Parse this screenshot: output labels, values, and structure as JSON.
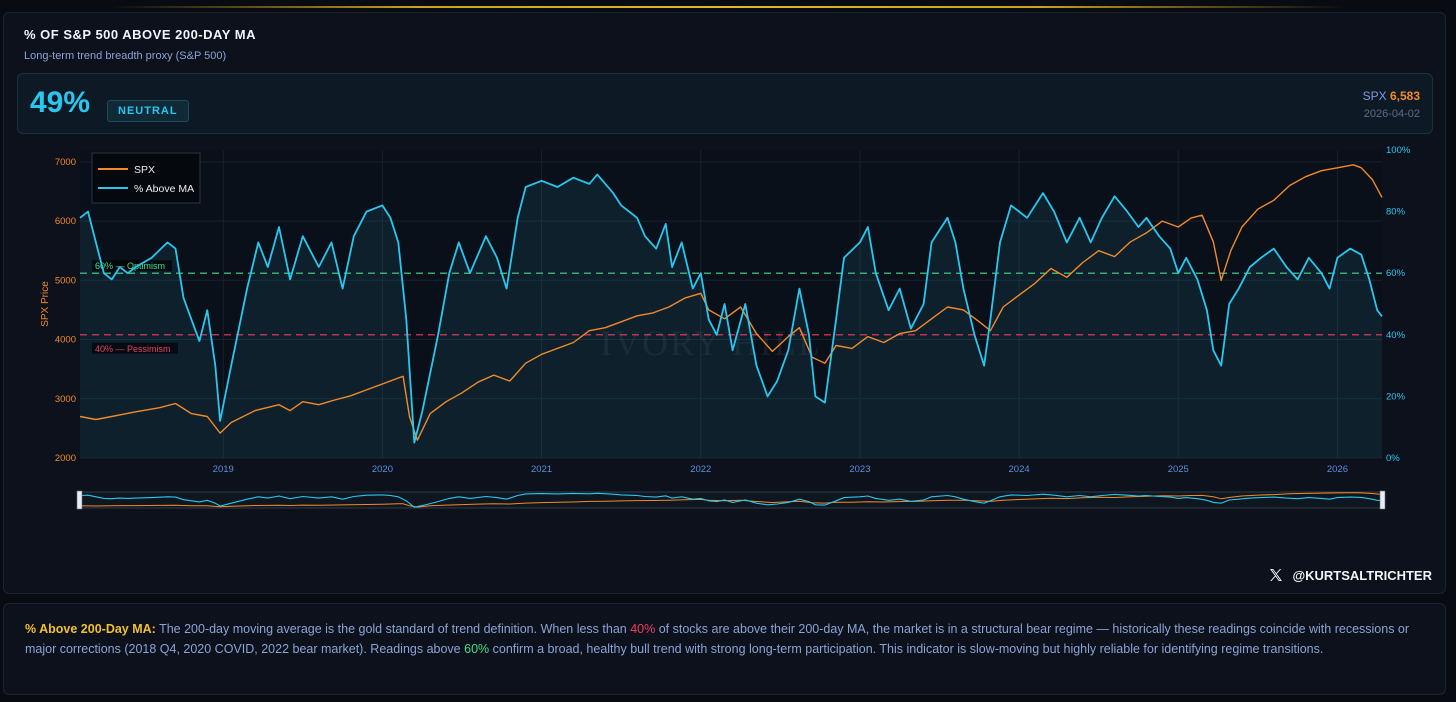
{
  "header": {
    "title": "% OF S&P 500 ABOVE 200-DAY MA",
    "subtitle": "Long-term trend breadth proxy (S&P 500)"
  },
  "kpi": {
    "value": "49%",
    "badge": "NEUTRAL",
    "spx_label": "SPX",
    "spx_value": "6,583",
    "date": "2026-04-02"
  },
  "colors": {
    "spx": "#f28a2a",
    "pct": "#28c7f0",
    "optimism": "#3ee08a",
    "pessimism": "#f03d63",
    "accent": "#28c7f0"
  },
  "chart_data": {
    "type": "line",
    "ylabel": "SPX Price",
    "y_left_range": [
      2000,
      7200
    ],
    "y_left_ticks": [
      2000,
      3000,
      4000,
      5000,
      6000,
      7000
    ],
    "y_right_range": [
      0,
      100
    ],
    "y_right_ticks": [
      "0%",
      "20%",
      "40%",
      "60%",
      "80%",
      "100%"
    ],
    "x_range": [
      2018.1,
      2026.28
    ],
    "x_ticks": [
      "2019",
      "2020",
      "2021",
      "2022",
      "2023",
      "2024",
      "2025",
      "2026"
    ],
    "legend": {
      "placement": "top-left",
      "entries": [
        "SPX",
        "% Above MA"
      ]
    },
    "watermark": "IVORY HILL",
    "thresholds": [
      {
        "label": "60% — Optimism",
        "value": 60
      },
      {
        "label": "40% — Pessimism",
        "value": 40
      }
    ],
    "series": [
      {
        "name": "SPX",
        "axis": "left",
        "points": [
          [
            2018.1,
            2700
          ],
          [
            2018.2,
            2650
          ],
          [
            2018.3,
            2700
          ],
          [
            2018.45,
            2780
          ],
          [
            2018.6,
            2850
          ],
          [
            2018.7,
            2920
          ],
          [
            2018.8,
            2750
          ],
          [
            2018.9,
            2700
          ],
          [
            2018.98,
            2420
          ],
          [
            2019.05,
            2600
          ],
          [
            2019.2,
            2800
          ],
          [
            2019.35,
            2900
          ],
          [
            2019.42,
            2800
          ],
          [
            2019.5,
            2950
          ],
          [
            2019.6,
            2900
          ],
          [
            2019.7,
            2980
          ],
          [
            2019.8,
            3050
          ],
          [
            2019.9,
            3150
          ],
          [
            2020.0,
            3250
          ],
          [
            2020.1,
            3350
          ],
          [
            2020.13,
            3380
          ],
          [
            2020.17,
            2700
          ],
          [
            2020.22,
            2300
          ],
          [
            2020.3,
            2750
          ],
          [
            2020.4,
            2950
          ],
          [
            2020.5,
            3100
          ],
          [
            2020.6,
            3280
          ],
          [
            2020.7,
            3400
          ],
          [
            2020.8,
            3300
          ],
          [
            2020.9,
            3600
          ],
          [
            2021.0,
            3750
          ],
          [
            2021.1,
            3850
          ],
          [
            2021.2,
            3950
          ],
          [
            2021.3,
            4150
          ],
          [
            2021.4,
            4200
          ],
          [
            2021.5,
            4300
          ],
          [
            2021.6,
            4400
          ],
          [
            2021.7,
            4450
          ],
          [
            2021.8,
            4550
          ],
          [
            2021.9,
            4700
          ],
          [
            2022.0,
            4780
          ],
          [
            2022.05,
            4500
          ],
          [
            2022.15,
            4350
          ],
          [
            2022.25,
            4550
          ],
          [
            2022.35,
            4100
          ],
          [
            2022.45,
            3800
          ],
          [
            2022.55,
            4050
          ],
          [
            2022.62,
            4200
          ],
          [
            2022.7,
            3700
          ],
          [
            2022.78,
            3600
          ],
          [
            2022.85,
            3900
          ],
          [
            2022.95,
            3850
          ],
          [
            2023.05,
            4050
          ],
          [
            2023.15,
            3950
          ],
          [
            2023.25,
            4100
          ],
          [
            2023.35,
            4150
          ],
          [
            2023.45,
            4350
          ],
          [
            2023.55,
            4550
          ],
          [
            2023.65,
            4500
          ],
          [
            2023.75,
            4300
          ],
          [
            2023.82,
            4150
          ],
          [
            2023.9,
            4550
          ],
          [
            2024.0,
            4750
          ],
          [
            2024.1,
            4950
          ],
          [
            2024.2,
            5200
          ],
          [
            2024.3,
            5050
          ],
          [
            2024.4,
            5300
          ],
          [
            2024.5,
            5500
          ],
          [
            2024.6,
            5400
          ],
          [
            2024.7,
            5650
          ],
          [
            2024.8,
            5800
          ],
          [
            2024.9,
            6000
          ],
          [
            2025.0,
            5900
          ],
          [
            2025.08,
            6050
          ],
          [
            2025.15,
            6100
          ],
          [
            2025.22,
            5650
          ],
          [
            2025.27,
            5000
          ],
          [
            2025.33,
            5500
          ],
          [
            2025.4,
            5900
          ],
          [
            2025.5,
            6200
          ],
          [
            2025.6,
            6350
          ],
          [
            2025.7,
            6600
          ],
          [
            2025.8,
            6750
          ],
          [
            2025.9,
            6850
          ],
          [
            2026.0,
            6900
          ],
          [
            2026.1,
            6950
          ],
          [
            2026.15,
            6900
          ],
          [
            2026.22,
            6700
          ],
          [
            2026.28,
            6400
          ]
        ]
      },
      {
        "name": "% Above MA",
        "axis": "right",
        "points": [
          [
            2018.1,
            78
          ],
          [
            2018.15,
            80
          ],
          [
            2018.2,
            70
          ],
          [
            2018.25,
            60
          ],
          [
            2018.3,
            58
          ],
          [
            2018.35,
            62
          ],
          [
            2018.4,
            60
          ],
          [
            2018.45,
            62
          ],
          [
            2018.55,
            65
          ],
          [
            2018.65,
            70
          ],
          [
            2018.7,
            68
          ],
          [
            2018.75,
            52
          ],
          [
            2018.8,
            45
          ],
          [
            2018.85,
            38
          ],
          [
            2018.9,
            48
          ],
          [
            2018.95,
            30
          ],
          [
            2018.98,
            12
          ],
          [
            2019.05,
            30
          ],
          [
            2019.15,
            55
          ],
          [
            2019.22,
            70
          ],
          [
            2019.28,
            62
          ],
          [
            2019.35,
            75
          ],
          [
            2019.42,
            58
          ],
          [
            2019.5,
            72
          ],
          [
            2019.6,
            62
          ],
          [
            2019.68,
            70
          ],
          [
            2019.75,
            55
          ],
          [
            2019.82,
            72
          ],
          [
            2019.9,
            80
          ],
          [
            2020.0,
            82
          ],
          [
            2020.05,
            78
          ],
          [
            2020.1,
            70
          ],
          [
            2020.15,
            45
          ],
          [
            2020.2,
            5
          ],
          [
            2020.25,
            15
          ],
          [
            2020.35,
            40
          ],
          [
            2020.42,
            60
          ],
          [
            2020.48,
            70
          ],
          [
            2020.55,
            60
          ],
          [
            2020.65,
            72
          ],
          [
            2020.72,
            65
          ],
          [
            2020.78,
            55
          ],
          [
            2020.85,
            78
          ],
          [
            2020.9,
            88
          ],
          [
            2021.0,
            90
          ],
          [
            2021.1,
            88
          ],
          [
            2021.2,
            91
          ],
          [
            2021.3,
            89
          ],
          [
            2021.35,
            92
          ],
          [
            2021.45,
            86
          ],
          [
            2021.5,
            82
          ],
          [
            2021.6,
            78
          ],
          [
            2021.65,
            72
          ],
          [
            2021.72,
            68
          ],
          [
            2021.78,
            76
          ],
          [
            2021.82,
            62
          ],
          [
            2021.88,
            70
          ],
          [
            2021.95,
            55
          ],
          [
            2022.0,
            60
          ],
          [
            2022.05,
            45
          ],
          [
            2022.1,
            40
          ],
          [
            2022.15,
            50
          ],
          [
            2022.2,
            35
          ],
          [
            2022.28,
            50
          ],
          [
            2022.35,
            30
          ],
          [
            2022.42,
            20
          ],
          [
            2022.48,
            25
          ],
          [
            2022.55,
            35
          ],
          [
            2022.62,
            55
          ],
          [
            2022.68,
            40
          ],
          [
            2022.72,
            20
          ],
          [
            2022.78,
            18
          ],
          [
            2022.85,
            45
          ],
          [
            2022.9,
            65
          ],
          [
            2023.0,
            70
          ],
          [
            2023.05,
            75
          ],
          [
            2023.1,
            60
          ],
          [
            2023.18,
            48
          ],
          [
            2023.25,
            55
          ],
          [
            2023.32,
            42
          ],
          [
            2023.4,
            50
          ],
          [
            2023.45,
            70
          ],
          [
            2023.55,
            78
          ],
          [
            2023.6,
            70
          ],
          [
            2023.65,
            55
          ],
          [
            2023.72,
            40
          ],
          [
            2023.78,
            30
          ],
          [
            2023.82,
            45
          ],
          [
            2023.88,
            70
          ],
          [
            2023.95,
            82
          ],
          [
            2024.05,
            78
          ],
          [
            2024.15,
            86
          ],
          [
            2024.22,
            80
          ],
          [
            2024.3,
            70
          ],
          [
            2024.38,
            78
          ],
          [
            2024.45,
            70
          ],
          [
            2024.52,
            78
          ],
          [
            2024.6,
            85
          ],
          [
            2024.68,
            80
          ],
          [
            2024.75,
            75
          ],
          [
            2024.8,
            78
          ],
          [
            2024.88,
            72
          ],
          [
            2024.95,
            68
          ],
          [
            2025.0,
            60
          ],
          [
            2025.05,
            65
          ],
          [
            2025.12,
            58
          ],
          [
            2025.18,
            48
          ],
          [
            2025.22,
            35
          ],
          [
            2025.27,
            30
          ],
          [
            2025.32,
            50
          ],
          [
            2025.38,
            55
          ],
          [
            2025.45,
            62
          ],
          [
            2025.52,
            65
          ],
          [
            2025.6,
            68
          ],
          [
            2025.68,
            62
          ],
          [
            2025.75,
            58
          ],
          [
            2025.82,
            65
          ],
          [
            2025.9,
            60
          ],
          [
            2025.95,
            55
          ],
          [
            2026.0,
            65
          ],
          [
            2026.08,
            68
          ],
          [
            2026.15,
            66
          ],
          [
            2026.2,
            58
          ],
          [
            2026.25,
            48
          ],
          [
            2026.28,
            46
          ]
        ]
      }
    ]
  },
  "credit": "@KURTSALTRICHTER",
  "description": {
    "lead": "% Above 200-Day MA:",
    "t1": " The 200-day moving average is the gold standard of trend definition. When less than ",
    "red": "40%",
    "t2": " of stocks are above their 200-day MA, the market is in a structural bear regime — historically these readings coincide with recessions or major corrections (2018 Q4, 2020 COVID, 2022 bear market). Readings above ",
    "green": "60%",
    "t3": " confirm a broad, healthy bull trend with strong long-term participation. This indicator is slow-moving but highly reliable for identifying regime transitions."
  }
}
